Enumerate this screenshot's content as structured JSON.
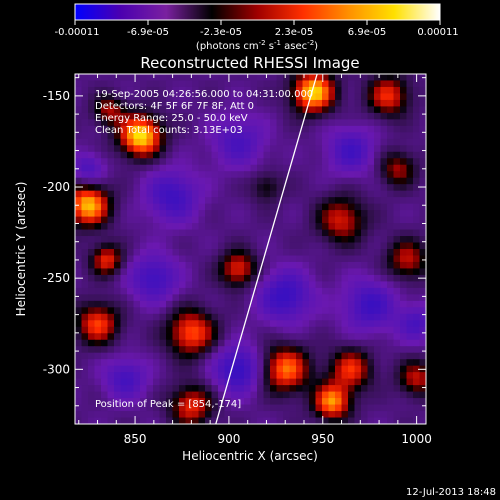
{
  "chart_data": {
    "type": "heatmap",
    "title": "Reconstructed RHESSI Image",
    "xlabel": "Heliocentric X (arcsec)",
    "ylabel": "Heliocentric Y (arcsec)",
    "xlim": [
      818,
      1005
    ],
    "ylim": [
      -330,
      -138
    ],
    "x_ticks": [
      850,
      900,
      950,
      1000
    ],
    "y_ticks": [
      -150,
      -200,
      -250,
      -300
    ],
    "colorbar": {
      "ticks": [
        "-0.00011",
        "-6.9e-05",
        "-2.3e-05",
        "2.3e-05",
        "6.9e-05",
        "0.00011"
      ],
      "unit_text": "(photons cm",
      "unit_exp1": "-2",
      "unit_mid": " s",
      "unit_exp2": "-1",
      "unit_end": " asec",
      "unit_exp3": "-2",
      "unit_close": ")",
      "colormap": [
        "#0000ff",
        "#4b00b0",
        "#7a20a0",
        "#000000",
        "#a00000",
        "#ff3000",
        "#ff9000",
        "#ffe000",
        "#ffffff"
      ]
    },
    "info_lines": [
      "19-Sep-2005 04:26:56.000 to 04:31:00.000",
      "Detectors: 4F 5F 6F 7F 8F, Att 0",
      "Energy Range: 25.0 - 50.0 keV",
      "Clean       Total counts: 3.13E+03"
    ],
    "peak_label": "Position of Peak = [854,-174]",
    "limb_line": {
      "x_start": 893,
      "y_start": -330,
      "x_end": 947,
      "y_end": -138
    },
    "sources": [
      {
        "x": 853,
        "y": -172,
        "amp": 1.0,
        "s": 8
      },
      {
        "x": 825,
        "y": -210,
        "amp": 0.9,
        "s": 8
      },
      {
        "x": 945,
        "y": -148,
        "amp": 0.95,
        "s": 8
      },
      {
        "x": 985,
        "y": -150,
        "amp": 0.6,
        "s": 8
      },
      {
        "x": 836,
        "y": -158,
        "amp": 0.45,
        "s": 6
      },
      {
        "x": 960,
        "y": -218,
        "amp": 0.55,
        "s": 9
      },
      {
        "x": 995,
        "y": -240,
        "amp": 0.5,
        "s": 8
      },
      {
        "x": 905,
        "y": -245,
        "amp": 0.6,
        "s": 7
      },
      {
        "x": 880,
        "y": -280,
        "amp": 0.7,
        "s": 9
      },
      {
        "x": 830,
        "y": -275,
        "amp": 0.65,
        "s": 8
      },
      {
        "x": 835,
        "y": -240,
        "amp": 0.6,
        "s": 6
      },
      {
        "x": 880,
        "y": -320,
        "amp": 0.6,
        "s": 8
      },
      {
        "x": 930,
        "y": -300,
        "amp": 0.75,
        "s": 9
      },
      {
        "x": 965,
        "y": -300,
        "amp": 0.6,
        "s": 8
      },
      {
        "x": 955,
        "y": -318,
        "amp": 0.8,
        "s": 7
      },
      {
        "x": 1000,
        "y": -305,
        "amp": 0.5,
        "s": 7
      },
      {
        "x": 920,
        "y": -200,
        "amp": 0.3,
        "s": 6
      },
      {
        "x": 990,
        "y": -190,
        "amp": 0.45,
        "s": 7
      },
      {
        "x": 870,
        "y": -205,
        "amp": -0.5,
        "s": 10
      },
      {
        "x": 905,
        "y": -175,
        "amp": -0.4,
        "s": 10
      },
      {
        "x": 930,
        "y": -260,
        "amp": -0.55,
        "s": 10
      },
      {
        "x": 860,
        "y": -250,
        "amp": -0.5,
        "s": 9
      },
      {
        "x": 975,
        "y": -265,
        "amp": -0.5,
        "s": 10
      },
      {
        "x": 905,
        "y": -300,
        "amp": -0.6,
        "s": 9
      },
      {
        "x": 845,
        "y": -305,
        "amp": -0.45,
        "s": 8
      },
      {
        "x": 965,
        "y": -180,
        "amp": -0.45,
        "s": 9
      },
      {
        "x": 825,
        "y": -190,
        "amp": -0.4,
        "s": 6
      },
      {
        "x": 1000,
        "y": -275,
        "amp": -0.4,
        "s": 7
      }
    ]
  },
  "footer": {
    "date": "12-Jul-2013 18:48"
  }
}
